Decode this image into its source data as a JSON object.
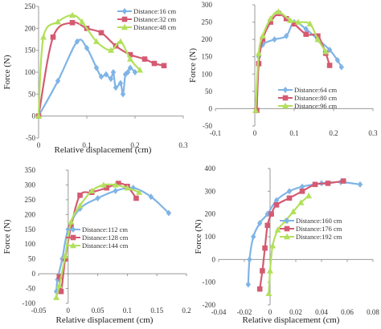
{
  "colors": {
    "blue": "#7fb4e6",
    "red": "#d45a72",
    "green": "#b2e05c",
    "axis": "#999999"
  },
  "chart_data": [
    {
      "type": "line",
      "xlabel": "Relative displacement (cm)",
      "ylabel": "Force (N)",
      "xlim": [
        0,
        0.3
      ],
      "ylim": [
        -50,
        250
      ],
      "xticks": [
        "0",
        "0.1",
        "0.2",
        "0.3"
      ],
      "yticks": [
        "-50",
        "0",
        "50",
        "100",
        "150",
        "200",
        "250"
      ],
      "legend": "top-right",
      "series": [
        {
          "name": "Distance:16 cm",
          "color": "blue",
          "marker": "diamond",
          "x": [
            0,
            0.04,
            0.08,
            0.1,
            0.12,
            0.13,
            0.14,
            0.15,
            0.155,
            0.16,
            0.17,
            0.175,
            0.18,
            0.185,
            0.19,
            0.2
          ],
          "y": [
            0,
            80,
            170,
            155,
            110,
            90,
            95,
            85,
            100,
            65,
            75,
            50,
            95,
            100,
            110,
            100
          ]
        },
        {
          "name": "Distance:32 cm",
          "color": "red",
          "marker": "square",
          "x": [
            0,
            0.03,
            0.07,
            0.1,
            0.13,
            0.16,
            0.19,
            0.22,
            0.24,
            0.26
          ],
          "y": [
            0,
            180,
            213,
            200,
            190,
            160,
            140,
            130,
            120,
            115
          ]
        },
        {
          "name": "Distance:48 cm",
          "color": "green",
          "marker": "triangle",
          "x": [
            0,
            0.01,
            0.04,
            0.07,
            0.09,
            0.12,
            0.15,
            0.17,
            0.19,
            0.21
          ],
          "y": [
            0,
            180,
            215,
            230,
            215,
            170,
            150,
            170,
            130,
            105
          ]
        }
      ]
    },
    {
      "type": "line",
      "xlabel": "",
      "ylabel": "Force (N)",
      "xlim": [
        -0.1,
        0.3
      ],
      "ylim": [
        -50,
        300
      ],
      "xticks": [
        "-0.1",
        "0",
        "0.1",
        "0.2",
        "0.3"
      ],
      "yticks": [
        "-50",
        "0",
        "50",
        "100",
        "150",
        "200",
        "250",
        "300"
      ],
      "legend": "bottom-right",
      "series": [
        {
          "name": "Distance:64 cm",
          "color": "blue",
          "marker": "diamond",
          "x": [
            0.005,
            0.01,
            0.02,
            0.05,
            0.08,
            0.1,
            0.13,
            0.16,
            0.19,
            0.21,
            0.22
          ],
          "y": [
            -5,
            150,
            185,
            200,
            210,
            250,
            230,
            200,
            170,
            140,
            120
          ]
        },
        {
          "name": "Distance:80 cm",
          "color": "red",
          "marker": "square",
          "x": [
            0.005,
            0.01,
            0.02,
            0.04,
            0.06,
            0.08,
            0.1,
            0.13,
            0.16,
            0.18,
            0.19
          ],
          "y": [
            -5,
            130,
            200,
            250,
            275,
            260,
            245,
            215,
            210,
            160,
            125
          ]
        },
        {
          "name": "Distance:96 cm",
          "color": "green",
          "marker": "triangle",
          "x": [
            0.002,
            0.01,
            0.02,
            0.04,
            0.06,
            0.09,
            0.11,
            0.14,
            0.16,
            0.18
          ],
          "y": [
            -5,
            160,
            210,
            260,
            280,
            255,
            250,
            245,
            200,
            165
          ]
        }
      ]
    },
    {
      "type": "line",
      "xlabel": "Relative displacement (cm)",
      "ylabel": "Force (N)",
      "xlim": [
        -0.05,
        0.2
      ],
      "ylim": [
        -100,
        350
      ],
      "xticks": [
        "-0.05",
        "0",
        "0.05",
        "0.1",
        "0.15",
        "0.2"
      ],
      "yticks": [
        "-100",
        "-50",
        "0",
        "50",
        "100",
        "150",
        "200",
        "250",
        "300",
        "350"
      ],
      "legend": "bottom-left",
      "series": [
        {
          "name": "Distance:112 cm",
          "color": "blue",
          "marker": "diamond",
          "x": [
            -0.02,
            -0.018,
            -0.01,
            0.0,
            0.02,
            0.05,
            0.08,
            0.11,
            0.14,
            0.17
          ],
          "y": [
            -60,
            -20,
            50,
            150,
            220,
            255,
            280,
            290,
            260,
            205
          ]
        },
        {
          "name": "Distance:128 cm",
          "color": "red",
          "marker": "square",
          "x": [
            -0.015,
            -0.012,
            -0.005,
            0.005,
            0.02,
            0.04,
            0.065,
            0.085,
            0.1,
            0.115
          ],
          "y": [
            -10,
            -60,
            50,
            160,
            265,
            275,
            290,
            305,
            295,
            255
          ]
        },
        {
          "name": "Distance:144 cm",
          "color": "green",
          "marker": "triangle",
          "x": [
            -0.02,
            -0.015,
            -0.005,
            0.005,
            0.02,
            0.04,
            0.06,
            0.08,
            0.1,
            0.12
          ],
          "y": [
            -80,
            -40,
            60,
            175,
            230,
            280,
            300,
            300,
            290,
            275
          ]
        }
      ]
    },
    {
      "type": "line",
      "xlabel": "Relative displacement (cm)",
      "ylabel": "Force (N)",
      "xlim": [
        -0.04,
        0.08
      ],
      "ylim": [
        -200,
        400
      ],
      "xticks": [
        "-0.04",
        "-0.02",
        "0",
        "0.02",
        "0.04",
        "0.06",
        "0.08"
      ],
      "yticks": [
        "-200",
        "-100",
        "0",
        "100",
        "200",
        "300",
        "400"
      ],
      "legend": "middle-right",
      "series": [
        {
          "name": "Distance:160 cm",
          "color": "blue",
          "marker": "diamond",
          "x": [
            -0.017,
            -0.016,
            -0.013,
            -0.008,
            -0.002,
            0.005,
            0.015,
            0.025,
            0.04,
            0.055,
            0.07
          ],
          "y": [
            -110,
            0,
            100,
            160,
            200,
            260,
            300,
            320,
            335,
            340,
            330
          ]
        },
        {
          "name": "Distance:176 cm",
          "color": "red",
          "marker": "square",
          "x": [
            -0.008,
            -0.006,
            -0.004,
            -0.002,
            0.001,
            0.005,
            0.015,
            0.025,
            0.035,
            0.045,
            0.057
          ],
          "y": [
            -130,
            -50,
            50,
            150,
            200,
            240,
            270,
            300,
            330,
            335,
            345
          ]
        },
        {
          "name": "Distance:192 cm",
          "color": "green",
          "marker": "triangle",
          "x": [
            -0.001,
            0.0,
            0.002,
            0.006,
            0.012,
            0.018,
            0.024,
            0.03
          ],
          "y": [
            -150,
            -50,
            60,
            130,
            170,
            210,
            250,
            280
          ]
        }
      ]
    }
  ]
}
